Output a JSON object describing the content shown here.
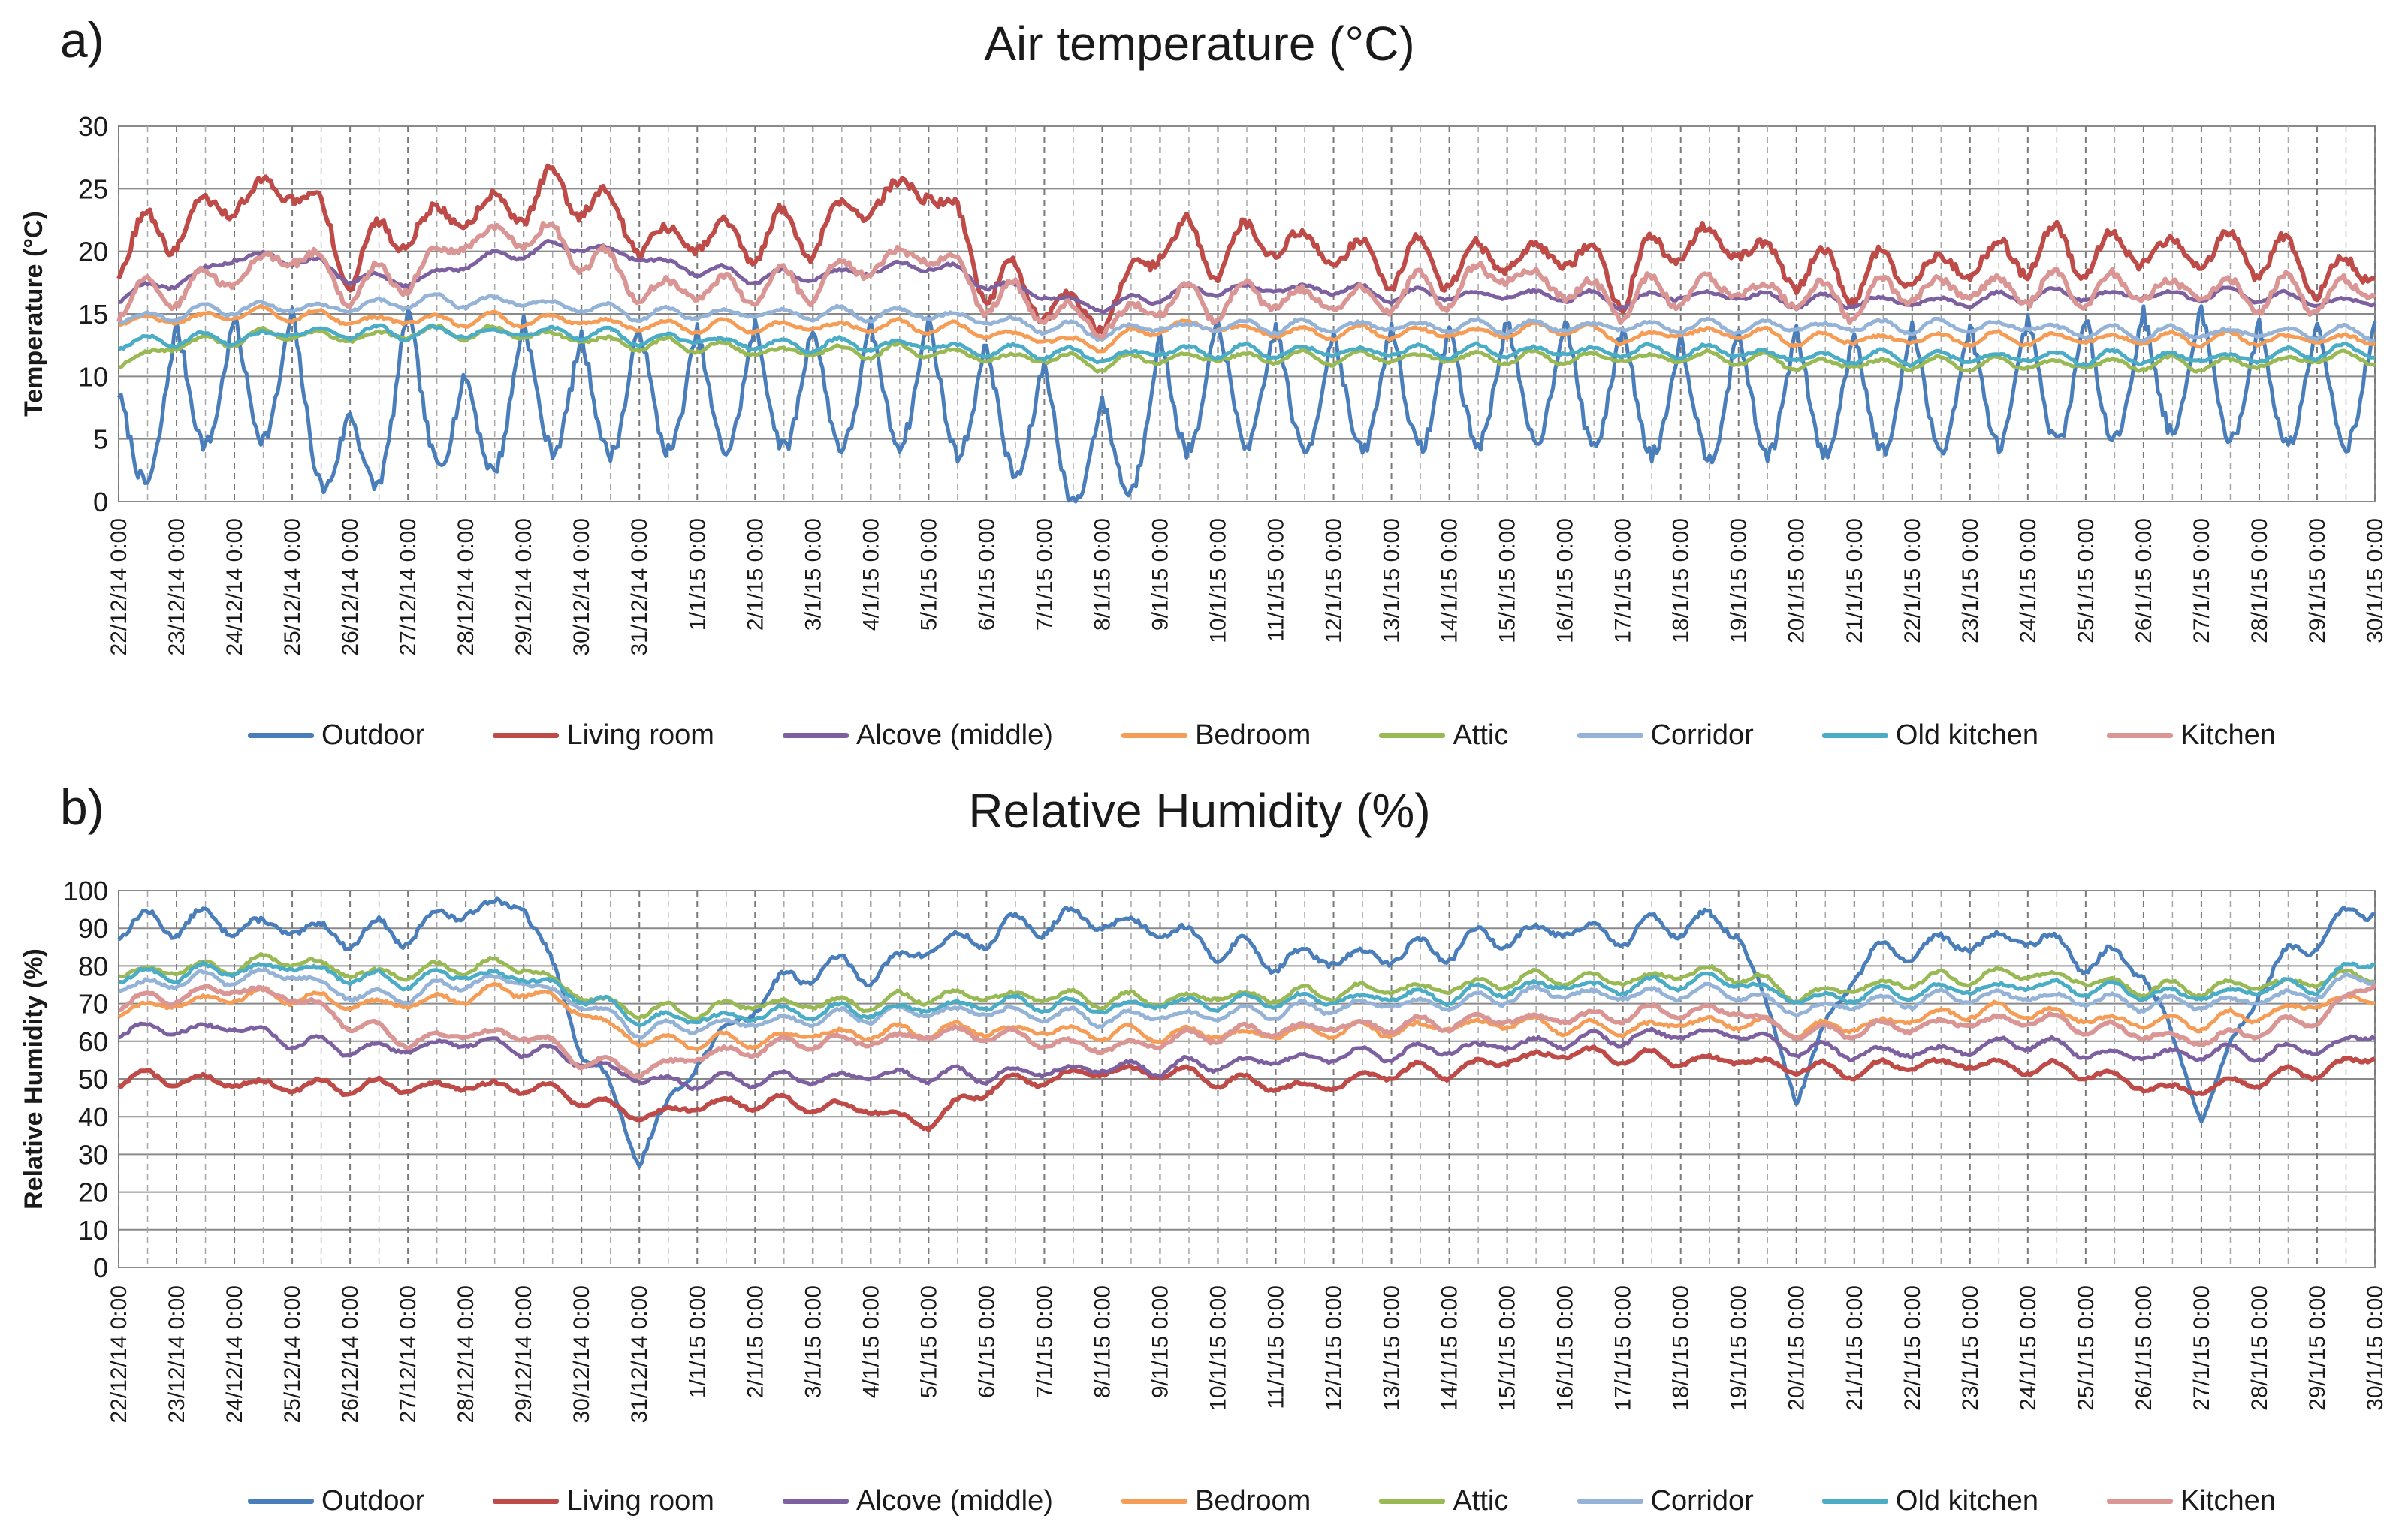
{
  "panels": [
    {
      "letter": "a)",
      "title": "Air temperature (°C)",
      "chart_data": {
        "type": "line",
        "title": "Air temperature (°C)",
        "xlabel": "",
        "ylabel": "Temperature (°C)",
        "ylim": [
          0,
          30
        ],
        "yticks": [
          "0",
          "5",
          "10",
          "15",
          "20",
          "25",
          "30"
        ],
        "ytick_values": [
          0,
          5,
          10,
          15,
          20,
          25,
          30
        ],
        "xlim_days": [
          0,
          39
        ],
        "x_tick_labels": [
          "22/12/14 0:00",
          "23/12/14 0:00",
          "24/12/14 0:00",
          "25/12/14 0:00",
          "26/12/14 0:00",
          "27/12/14 0:00",
          "28/12/14 0:00",
          "29/12/14 0:00",
          "30/12/14 0:00",
          "31/12/14 0:00",
          "1/1/15 0:00",
          "2/1/15 0:00",
          "3/1/15 0:00",
          "4/1/15 0:00",
          "5/1/15 0:00",
          "6/1/15 0:00",
          "7/1/15 0:00",
          "8/1/15 0:00",
          "9/1/15 0:00",
          "10/1/15 0:00",
          "11/1/15 0:00",
          "12/1/15 0:00",
          "13/1/15 0:00",
          "14/1/15 0:00",
          "15/1/15 0:00",
          "16/1/15 0:00",
          "17/1/15 0:00",
          "18/1/15 0:00",
          "19/1/15 0:00",
          "20/1/15 0:00",
          "21/1/15 0:00",
          "22/1/15 0:00",
          "23/1/15 0:00",
          "24/1/15 0:00",
          "25/1/15 0:00",
          "26/1/15 0:00",
          "27/1/15 0:00",
          "28/1/15 0:00",
          "29/1/15 0:00",
          "30/1/15 0:00"
        ],
        "grid": true,
        "legend_position": "bottom",
        "series": [
          {
            "name": "Outdoor",
            "color": "#4a7ebb",
            "values": [
              6.5,
              12,
              12.5,
              13,
              5,
              13.5,
              8,
              12.5,
              11,
              12,
              11.5,
              12,
              12,
              12,
              12.5,
              10.5,
              9,
              6,
              11,
              12.5,
              12,
              11.5,
              12,
              12,
              12.5,
              12.5,
              12,
              11,
              11.5,
              11.5,
              11.5,
              12,
              12,
              12.5,
              12.5,
              13,
              13.5,
              12,
              12.5,
              12
            ]
          },
          {
            "name": "Living room",
            "color": "#be4b48",
            "values": [
              20,
              22,
              24,
              25.5,
              19,
              22,
              23,
              24,
              25,
              21,
              21,
              21,
              21.5,
              24,
              25.5,
              18,
              16,
              14.5,
              21,
              20,
              21,
              20,
              19,
              19,
              19.5,
              20,
              17.5,
              21,
              20.5,
              18.5,
              18,
              18.5,
              19,
              20,
              20,
              20,
              20,
              20,
              18,
              18.5
            ]
          },
          {
            "name": "Alcove (middle)",
            "color": "#7d60a0",
            "values": [
              16.5,
              17.5,
              19.5,
              19.5,
              18,
              17.5,
              19,
              20,
              20.5,
              19.5,
              18.5,
              18,
              18,
              18.5,
              19,
              17.5,
              16.5,
              15.5,
              16.5,
              17,
              17,
              17,
              16.5,
              16.5,
              16.5,
              16.5,
              16,
              16.5,
              16.5,
              16,
              16,
              16,
              16,
              16.5,
              16.5,
              16.5,
              16.5,
              16.5,
              16,
              16
            ]
          },
          {
            "name": "Bedroom",
            "color": "#f59d56",
            "values": [
              14.5,
              14.5,
              15,
              15,
              14.5,
              14.5,
              14.5,
              14.5,
              14.5,
              14,
              14,
              14,
              14,
              14,
              14,
              13.5,
              13,
              12.5,
              14,
              14,
              13.5,
              13.5,
              13.5,
              13.5,
              13.5,
              14,
              13,
              13.5,
              13.5,
              13,
              13,
              13,
              13,
              13,
              13,
              13,
              13,
              13,
              13,
              13
            ]
          },
          {
            "name": "Attic",
            "color": "#98b954",
            "values": [
              11,
              12.5,
              13,
              13.5,
              13,
              13.5,
              13.5,
              13.5,
              13,
              12.5,
              12.5,
              12,
              12,
              12,
              12,
              11.5,
              11.5,
              11,
              11.5,
              11.5,
              11.5,
              11.5,
              11.5,
              11.5,
              11.5,
              11.5,
              11.5,
              11.5,
              11.5,
              11,
              11,
              11,
              11,
              11,
              11,
              11,
              11,
              11,
              11.5,
              11.5
            ]
          },
          {
            "name": "Corridor",
            "color": "#95b3d7",
            "values": [
              14.5,
              15,
              15.5,
              15.5,
              15.5,
              16,
              16,
              16,
              15.5,
              15,
              15,
              15,
              15,
              15,
              15,
              14.5,
              14,
              13.5,
              14,
              14,
              14,
              14,
              14,
              14,
              14,
              14,
              14,
              14,
              14,
              14,
              14,
              14,
              14,
              14,
              13.5,
              13.5,
              13.5,
              13.5,
              13.5,
              13.5
            ]
          },
          {
            "name": "Old kitchen",
            "color": "#4bacc6",
            "values": [
              12.5,
              13,
              13,
              13.5,
              13.5,
              13.5,
              13.5,
              13.5,
              13.5,
              13,
              13,
              12.5,
              12.5,
              12.5,
              12.5,
              12,
              12,
              11.5,
              12,
              12,
              12,
              12,
              12,
              12,
              12,
              12,
              12,
              12,
              12,
              11.5,
              11.5,
              11.5,
              11.5,
              11.5,
              11.5,
              11.5,
              11.5,
              11.5,
              12,
              12
            ]
          },
          {
            "name": "Kitchen",
            "color": "#d99694",
            "values": [
              16,
              17,
              18,
              20,
              17,
              18,
              21,
              21.5,
              20,
              17,
              17,
              17,
              17.5,
              19,
              20,
              16.5,
              15.5,
              14,
              16,
              16,
              16.5,
              16,
              16.5,
              17,
              18.5,
              17,
              16,
              17,
              17,
              16.5,
              16,
              17,
              17,
              17,
              17,
              17,
              17,
              16.5,
              16.5,
              17
            ]
          }
        ]
      }
    },
    {
      "letter": "b)",
      "title": "Relative Humidity (%)",
      "chart_data": {
        "type": "line",
        "title": "Relative Humidity (%)",
        "xlabel": "",
        "ylabel": "Relative Humidity (%)",
        "ylim": [
          0,
          100
        ],
        "yticks": [
          "0",
          "10",
          "20",
          "30",
          "40",
          "50",
          "60",
          "70",
          "80",
          "90",
          "100"
        ],
        "ytick_values": [
          0,
          10,
          20,
          30,
          40,
          50,
          60,
          70,
          80,
          90,
          100
        ],
        "xlim_days": [
          0,
          39
        ],
        "x_tick_labels": [
          "22/12/14 0:00",
          "23/12/14 0:00",
          "24/12/14 0:00",
          "25/12/14 0:00",
          "26/12/14 0:00",
          "27/12/14 0:00",
          "28/12/14 0:00",
          "29/12/14 0:00",
          "30/12/14 0:00",
          "31/12/14 0:00",
          "1/1/15 0:00",
          "2/1/15 0:00",
          "3/1/15 0:00",
          "4/1/15 0:00",
          "5/1/15 0:00",
          "6/1/15 0:00",
          "7/1/15 0:00",
          "8/1/15 0:00",
          "9/1/15 0:00",
          "10/1/15 0:00",
          "11/1/15 0:00",
          "12/1/15 0:00",
          "13/1/15 0:00",
          "14/1/15 0:00",
          "15/1/15 0:00",
          "16/1/15 0:00",
          "17/1/15 0:00",
          "18/1/15 0:00",
          "19/1/15 0:00",
          "20/1/15 0:00",
          "21/1/15 0:00",
          "22/1/15 0:00",
          "23/1/15 0:00",
          "24/1/15 0:00",
          "25/1/15 0:00",
          "26/1/15 0:00",
          "27/1/15 0:00",
          "28/1/15 0:00",
          "29/1/15 0:00",
          "30/1/15 0:00"
        ],
        "grid": true,
        "legend_position": "bottom",
        "series": [
          {
            "name": "Outdoor",
            "color": "#4a7ebb",
            "values": [
              90,
              92,
              91,
              90,
              88,
              89,
              95,
              97,
              60,
              30,
              55,
              70,
              80,
              78,
              85,
              88,
              92,
              92,
              90,
              85,
              82,
              82,
              83,
              85,
              88,
              90,
              88,
              92,
              90,
              45,
              80,
              85,
              86,
              88,
              82,
              80,
              40,
              75,
              88,
              96
            ]
          },
          {
            "name": "Living room",
            "color": "#be4b48",
            "values": [
              50,
              50,
              49,
              48,
              48,
              48,
              48,
              48,
              45,
              40,
              43,
              44,
              43,
              42,
              38,
              48,
              50,
              52,
              52,
              50,
              48,
              48,
              52,
              52,
              55,
              57,
              56,
              55,
              55,
              53,
              52,
              54,
              54,
              53,
              52,
              48,
              47,
              50,
              52,
              56
            ]
          },
          {
            "name": "Alcove (middle)",
            "color": "#7d60a0",
            "values": [
              63,
              63,
              64,
              60,
              58,
              58,
              60,
              58,
              55,
              50,
              49,
              50,
              50,
              51,
              51,
              51,
              52,
              53,
              53,
              54,
              55,
              56,
              57,
              58,
              59,
              60,
              61,
              62,
              62,
              58,
              57,
              57,
              58,
              60,
              57,
              56,
              57,
              57,
              58,
              62
            ]
          },
          {
            "name": "Bedroom",
            "color": "#f59d56",
            "values": [
              68,
              70,
              72,
              72,
              70,
              70,
              72,
              74,
              68,
              60,
              60,
              60,
              62,
              62,
              63,
              63,
              63,
              62,
              62,
              62,
              62,
              63,
              63,
              64,
              65,
              64,
              63,
              65,
              65,
              63,
              64,
              66,
              68,
              68,
              66,
              65,
              65,
              67,
              70,
              72
            ]
          },
          {
            "name": "Attic",
            "color": "#98b954",
            "values": [
              78,
              79,
              80,
              82,
              78,
              78,
              80,
              80,
              72,
              68,
              68,
              70,
              70,
              70,
              72,
              72,
              72,
              71,
              71,
              72,
              72,
              73,
              74,
              74,
              76,
              77,
              76,
              78,
              78,
              72,
              74,
              76,
              77,
              78,
              76,
              74,
              74,
              75,
              76,
              78
            ]
          },
          {
            "name": "Corridor",
            "color": "#95b3d7",
            "values": [
              74,
              76,
              77,
              78,
              72,
              72,
              76,
              76,
              70,
              63,
              64,
              65,
              66,
              67,
              68,
              68,
              67,
              66,
              67,
              67,
              68,
              69,
              70,
              70,
              72,
              73,
              72,
              73,
              73,
              68,
              70,
              71,
              72,
              72,
              71,
              70,
              70,
              71,
              73,
              78
            ]
          },
          {
            "name": "Old kitchen",
            "color": "#4bacc6",
            "values": [
              77,
              78,
              79,
              80,
              77,
              76,
              78,
              77,
              72,
              66,
              66,
              67,
              68,
              68,
              69,
              70,
              70,
              69,
              70,
              70,
              71,
              71,
              72,
              72,
              74,
              75,
              74,
              76,
              76,
              71,
              72,
              73,
              74,
              75,
              74,
              73,
              72,
              74,
              75,
              82
            ]
          },
          {
            "name": "Kitchen",
            "color": "#d99694",
            "values": [
              70,
              72,
              74,
              72,
              65,
              60,
              62,
              62,
              55,
              52,
              56,
              58,
              60,
              60,
              62,
              62,
              60,
              58,
              60,
              62,
              63,
              64,
              64,
              65,
              66,
              66,
              67,
              68,
              68,
              62,
              63,
              64,
              65,
              66,
              64,
              62,
              60,
              63,
              66,
              76
            ]
          }
        ]
      }
    }
  ]
}
